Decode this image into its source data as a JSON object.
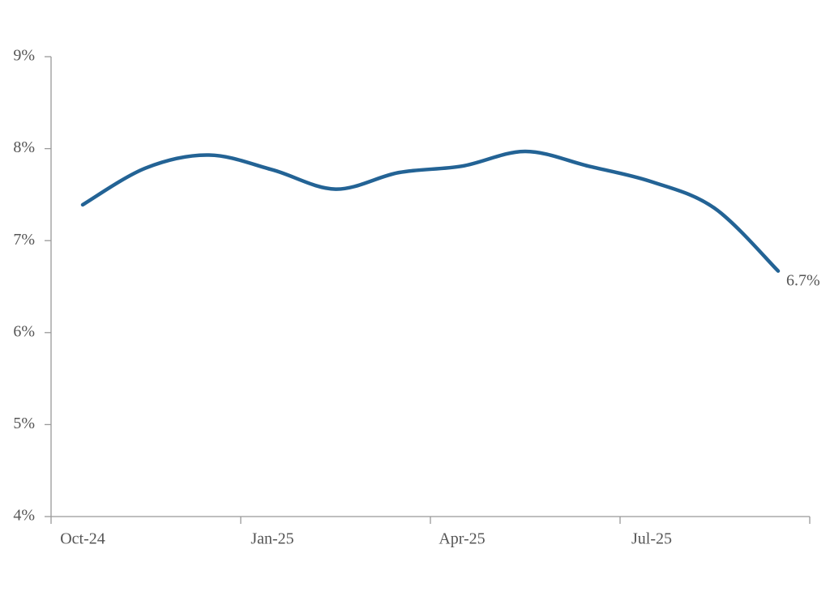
{
  "chart_data": {
    "type": "line",
    "categories": [
      "Oct-24",
      null,
      null,
      "Jan-25",
      null,
      null,
      "Apr-25",
      null,
      null,
      "Jul-25",
      null,
      null
    ],
    "series": [
      {
        "name": null,
        "color": "#236395",
        "values": [
          7.39,
          7.79,
          7.93,
          7.77,
          7.56,
          7.74,
          7.81,
          7.97,
          7.81,
          7.64,
          7.35,
          6.67
        ],
        "value_labels": [
          null,
          null,
          null,
          null,
          null,
          null,
          null,
          null,
          null,
          null,
          null,
          "6.7%"
        ]
      }
    ],
    "ylim": [
      4,
      9
    ],
    "yticks": [
      {
        "value": 4,
        "label": "4%"
      },
      {
        "value": 5,
        "label": "5%"
      },
      {
        "value": 6,
        "label": "6%"
      },
      {
        "value": 7,
        "label": "7%"
      },
      {
        "value": 8,
        "label": "8%"
      },
      {
        "value": 9,
        "label": "9%"
      }
    ]
  }
}
